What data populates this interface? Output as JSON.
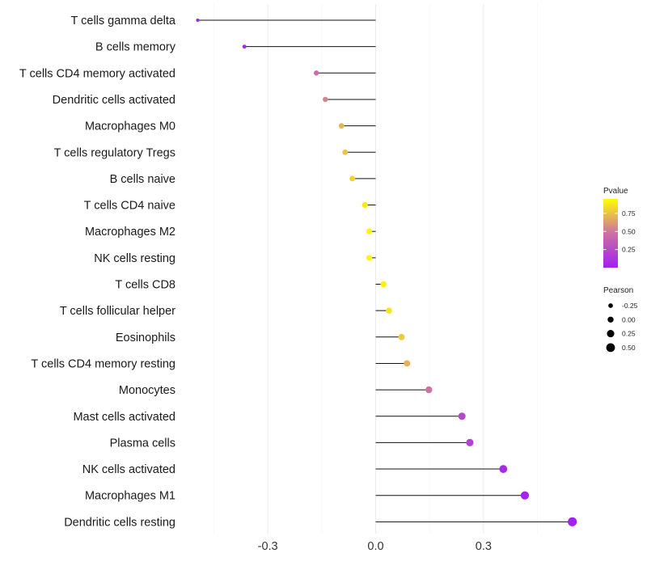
{
  "chart_data": {
    "type": "lollipop",
    "title": "",
    "xlabel": "",
    "ylabel": "",
    "xlim": [
      -0.6,
      0.58
    ],
    "x_ticks": [
      -0.3,
      0.0,
      0.3
    ],
    "x_tick_labels": [
      "-0.3",
      "0.0",
      "0.3"
    ],
    "grid": true,
    "categories": [
      "T cells gamma delta",
      "B cells memory",
      "T cells CD4 memory activated",
      "Dendritic cells activated",
      "Macrophages M0",
      "T cells regulatory  Tregs ",
      "B cells naive",
      "T cells CD4 naive",
      "Macrophages M2",
      "NK cells resting",
      "T cells CD8",
      "T cells follicular helper",
      "Eosinophils",
      "T cells CD4 memory resting",
      "Monocytes",
      "Mast cells activated",
      "Plasma cells",
      "NK cells activated",
      "Macrophages M1",
      "Dendritic cells resting"
    ],
    "pearson": [
      -0.495,
      -0.365,
      -0.165,
      -0.14,
      -0.095,
      -0.085,
      -0.065,
      -0.03,
      -0.018,
      -0.018,
      0.022,
      0.037,
      0.072,
      0.087,
      0.148,
      0.24,
      0.262,
      0.355,
      0.415,
      0.547
    ],
    "pvalue": [
      0.02,
      0.04,
      0.45,
      0.55,
      0.7,
      0.75,
      0.8,
      0.88,
      0.92,
      0.92,
      0.9,
      0.86,
      0.78,
      0.7,
      0.48,
      0.24,
      0.2,
      0.06,
      0.03,
      0.01
    ],
    "color_legend": {
      "title": "Pvalue",
      "ticks": [
        0.25,
        0.5,
        0.75
      ],
      "tick_labels": [
        "0.25",
        "0.50",
        "0.75"
      ],
      "range": [
        0.0,
        0.95
      ],
      "low_color": "#a020f0",
      "mid_color": "#cd6fa6",
      "high_color": "#ffff00"
    },
    "size_legend": {
      "title": "Pearson",
      "values": [
        -0.25,
        0.0,
        0.25,
        0.5
      ],
      "labels": [
        "-0.25",
        "0.00",
        "0.25",
        "0.50"
      ]
    }
  }
}
